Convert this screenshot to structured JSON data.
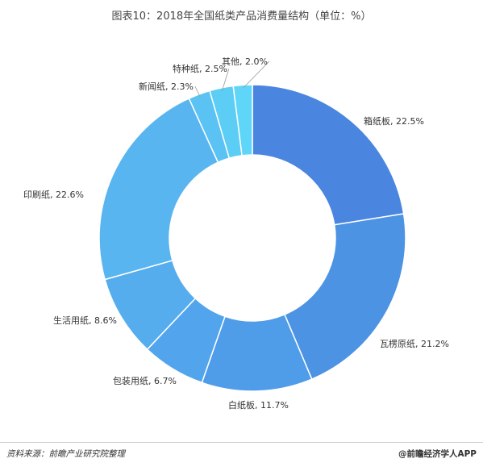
{
  "title": "图表10：2018年全国纸类产品消费量结构（单位：%）",
  "source": "资料来源：前瞻产业研究院整理",
  "brand": "@前瞻经济学人APP",
  "chart_data": {
    "type": "pie",
    "donut": true,
    "title": "图表10：2018年全国纸类产品消费量结构（单位：%）",
    "categories": [
      "箱纸板",
      "瓦楞原纸",
      "白纸板",
      "包装用纸",
      "生活用纸",
      "印刷纸",
      "新闻纸",
      "特种纸",
      "其他"
    ],
    "values": [
      22.5,
      21.2,
      11.7,
      6.7,
      8.6,
      22.6,
      2.3,
      2.5,
      2.0
    ],
    "labels": [
      "箱纸板, 22.5%",
      "瓦楞原纸, 21.2%",
      "白纸板, 11.7%",
      "包装用纸, 6.7%",
      "生活用纸, 8.6%",
      "印刷纸, 22.6%",
      "新闻纸, 2.3%",
      "特种纸, 2.5%",
      "其他, 2.0%"
    ],
    "colors": [
      "#4a86df",
      "#4d93e4",
      "#4f9ce9",
      "#52a5ec",
      "#55adee",
      "#58b5f0",
      "#5ac3f3",
      "#5ccdf5",
      "#5fd6f8"
    ],
    "unit": "%"
  }
}
